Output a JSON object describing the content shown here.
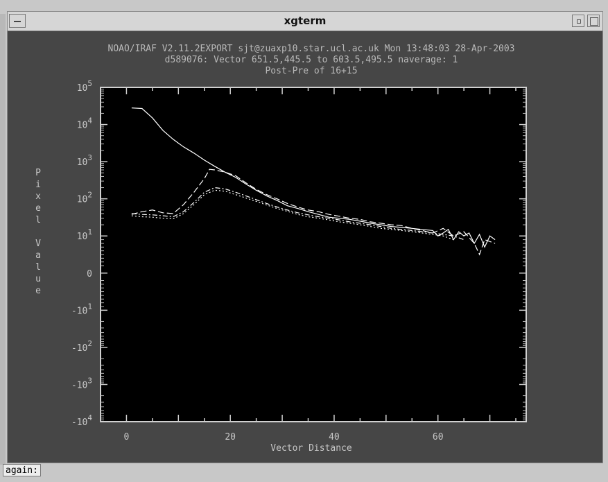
{
  "window": {
    "title": "xgterm"
  },
  "plot_header": {
    "line1": "NOAO/IRAF V2.11.2EXPORT sjt@zuaxp10.star.ucl.ac.uk Mon 13:48:03 28-Apr-2003",
    "line2": "d589076: Vector 651.5,445.5 to 603.5,495.5 naverage: 1",
    "line3": "Post-Pre of 16+15"
  },
  "prompt": {
    "text": "again:"
  },
  "colors": {
    "terminal_bg": "#464646",
    "plot_bg": "#000000",
    "trace": "#ffffff"
  },
  "chart_data": {
    "type": "line",
    "title": "Post-Pre of 16+15",
    "xlabel": "Vector Distance",
    "ylabel": "Pixel Value",
    "y_scale": "symlog",
    "xlim": [
      -5,
      77
    ],
    "ylim": [
      -10000,
      100000
    ],
    "x_ticks": [
      0,
      20,
      40,
      60
    ],
    "y_ticks": [
      {
        "label": "10",
        "exp": "5",
        "v": 5
      },
      {
        "label": "10",
        "exp": "4",
        "v": 4
      },
      {
        "label": "10",
        "exp": "3",
        "v": 3
      },
      {
        "label": "10",
        "exp": "2",
        "v": 2
      },
      {
        "label": "10",
        "exp": "1",
        "v": 1
      },
      {
        "label": "0",
        "exp": "",
        "v": 0
      },
      {
        "label": "-10",
        "exp": "1",
        "v": -1
      },
      {
        "label": "-10",
        "exp": "2",
        "v": -2
      },
      {
        "label": "-10",
        "exp": "3",
        "v": -3
      },
      {
        "label": "-10",
        "exp": "4",
        "v": -4
      }
    ],
    "series": [
      {
        "style": "solid",
        "x": [
          1,
          3,
          5,
          7,
          9,
          11,
          13,
          15,
          17,
          19,
          21,
          23,
          25,
          27,
          29,
          31,
          33,
          35,
          37,
          39,
          41,
          43,
          45,
          47,
          49,
          51,
          53,
          55,
          57,
          59,
          60,
          61,
          62,
          63,
          64,
          65,
          66,
          67,
          68,
          69,
          70,
          71
        ],
        "y": [
          28000,
          27000,
          15000,
          7000,
          4000,
          2500,
          1700,
          1100,
          750,
          520,
          380,
          250,
          170,
          120,
          90,
          65,
          55,
          45,
          38,
          32,
          30,
          28,
          25,
          22,
          20,
          18,
          17,
          16,
          15,
          14,
          10,
          12,
          15,
          9,
          13,
          10,
          12,
          8,
          11,
          7,
          10,
          9
        ]
      },
      {
        "style": "dashed",
        "x": [
          1,
          3,
          5,
          7,
          9,
          11,
          13,
          15,
          16,
          17,
          19,
          21,
          23,
          25,
          27,
          29,
          31,
          33,
          35,
          37,
          39,
          41,
          43,
          45,
          47,
          49,
          51,
          53,
          55,
          57,
          59,
          61,
          63,
          65,
          67,
          68,
          69,
          71
        ],
        "y": [
          38,
          45,
          50,
          42,
          40,
          70,
          150,
          350,
          620,
          600,
          520,
          420,
          270,
          180,
          130,
          100,
          75,
          60,
          50,
          45,
          38,
          34,
          30,
          28,
          24,
          22,
          20,
          19,
          16,
          14,
          12,
          16,
          10,
          13,
          8,
          5,
          9,
          8
        ]
      },
      {
        "style": "dash-dot",
        "x": [
          1,
          3,
          5,
          7,
          9,
          11,
          13,
          15,
          17,
          19,
          21,
          23,
          25,
          27,
          29,
          31,
          33,
          35,
          37,
          39,
          41,
          43,
          45,
          47,
          49,
          51,
          53,
          55,
          57,
          59,
          61,
          63,
          65
        ],
        "y": [
          40,
          38,
          37,
          35,
          33,
          45,
          80,
          150,
          200,
          185,
          150,
          120,
          95,
          75,
          60,
          50,
          42,
          37,
          33,
          30,
          27,
          24,
          22,
          20,
          18,
          16,
          15,
          14,
          13,
          12,
          11,
          10,
          9
        ]
      },
      {
        "style": "dotted",
        "x": [
          1,
          3,
          5,
          7,
          9,
          11,
          13,
          15,
          17,
          19,
          21,
          23,
          25,
          27,
          29,
          31,
          33,
          35,
          37,
          39,
          41,
          43,
          45,
          47,
          49,
          51,
          53,
          55,
          57,
          59,
          61,
          63
        ],
        "y": [
          35,
          33,
          32,
          30,
          29,
          40,
          70,
          130,
          170,
          160,
          130,
          105,
          85,
          68,
          55,
          46,
          38,
          33,
          30,
          27,
          24,
          22,
          20,
          18,
          16,
          15,
          14,
          13,
          12,
          11,
          10,
          9
        ]
      }
    ]
  }
}
